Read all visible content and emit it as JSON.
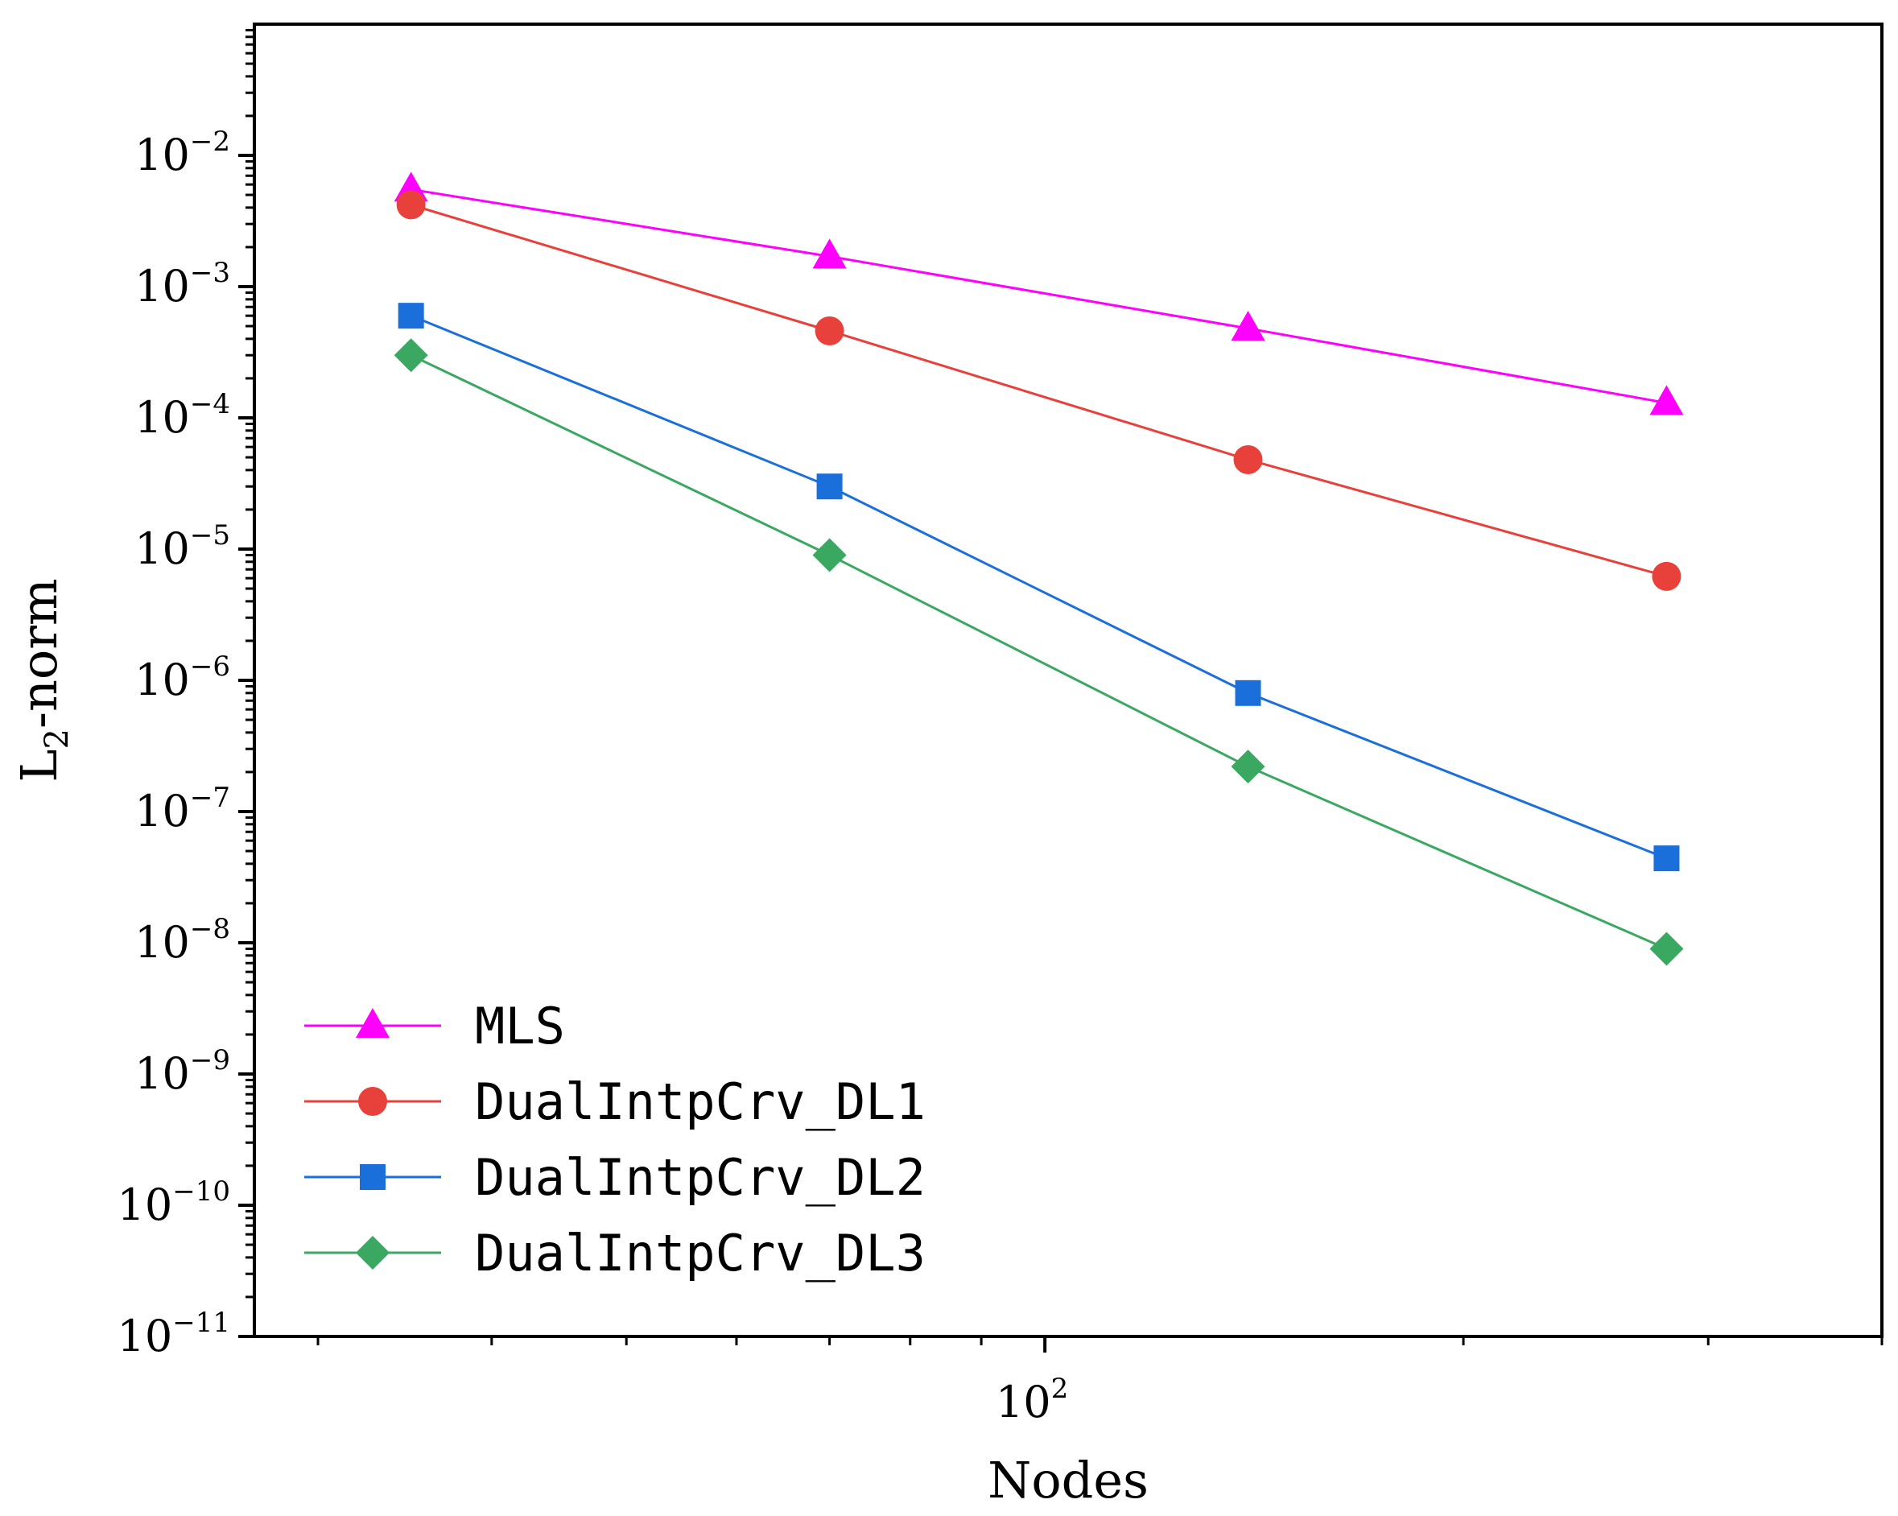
{
  "chart_data": {
    "type": "line",
    "xscale": "log",
    "yscale": "log",
    "xlabel": "Nodes",
    "ylabel_main": "L",
    "ylabel_sub": "2",
    "ylabel_rest": "-norm",
    "x": [
      35,
      70,
      140,
      280
    ],
    "xlim": [
      27,
      400
    ],
    "ylim": [
      1e-11,
      0.1
    ],
    "x_ticks": [
      {
        "value": 100,
        "base": "10",
        "exp": "2"
      }
    ],
    "y_ticks": [
      {
        "value": 0.01,
        "base": "10",
        "exp": "−2"
      },
      {
        "value": 0.001,
        "base": "10",
        "exp": "−3"
      },
      {
        "value": 0.0001,
        "base": "10",
        "exp": "−4"
      },
      {
        "value": 1e-05,
        "base": "10",
        "exp": "−5"
      },
      {
        "value": 1e-06,
        "base": "10",
        "exp": "−6"
      },
      {
        "value": 1e-07,
        "base": "10",
        "exp": "−7"
      },
      {
        "value": 1e-08,
        "base": "10",
        "exp": "−8"
      },
      {
        "value": 1e-09,
        "base": "10",
        "exp": "−9"
      },
      {
        "value": 1e-10,
        "base": "10",
        "exp": "−10"
      },
      {
        "value": 1e-11,
        "base": "10",
        "exp": "−11"
      }
    ],
    "series": [
      {
        "name": "MLS",
        "color": "#ff00ff",
        "marker": "triangle",
        "values": [
          0.0055,
          0.0017,
          0.00048,
          0.00013
        ]
      },
      {
        "name": "DualIntpCrv_DL1",
        "color": "#e8403a",
        "marker": "circle",
        "values": [
          0.0042,
          0.00046,
          4.8e-05,
          6.2e-06
        ]
      },
      {
        "name": "DualIntpCrv_DL2",
        "color": "#1a6fdb",
        "marker": "square",
        "values": [
          0.0006,
          3e-05,
          8e-07,
          4.4e-08
        ]
      },
      {
        "name": "DualIntpCrv_DL3",
        "color": "#3aa860",
        "marker": "diamond",
        "values": [
          0.0003,
          9e-06,
          2.2e-07,
          9e-09
        ]
      }
    ],
    "legend_location": "lower-left",
    "grid": false
  }
}
